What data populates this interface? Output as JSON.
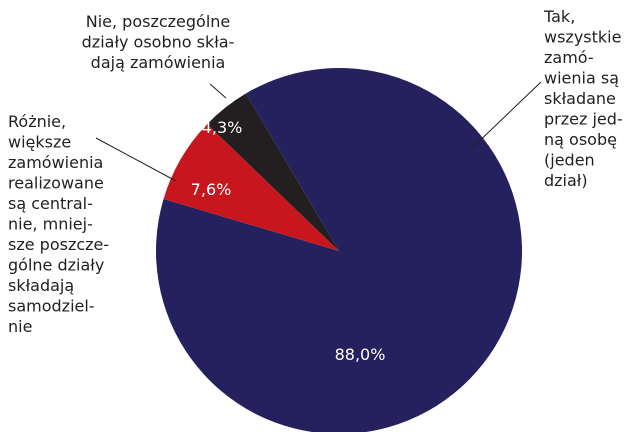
{
  "chart_data": {
    "type": "pie",
    "categories": [
      "Tak,\nwszystkie\nzamó-\nwienia są\nskładane\nprzez jed-\nną osobę\n(jeden\ndział)",
      "Różnie,\nwiększe\nzamówienia\nrealizowane\nsą central-\nnie, mniej-\nsze poszcze-\ngólne działy\nskładają\nsamodziel-\nnie",
      "Nie, poszczególne\ndziały osobno skła-\ndają zamówienia"
    ],
    "values": [
      88.0,
      7.6,
      4.3
    ],
    "value_labels": [
      "88,0%",
      "7,6%",
      "4,3%"
    ],
    "colors": [
      "#25215e",
      "#c7161e",
      "#231f20"
    ]
  }
}
